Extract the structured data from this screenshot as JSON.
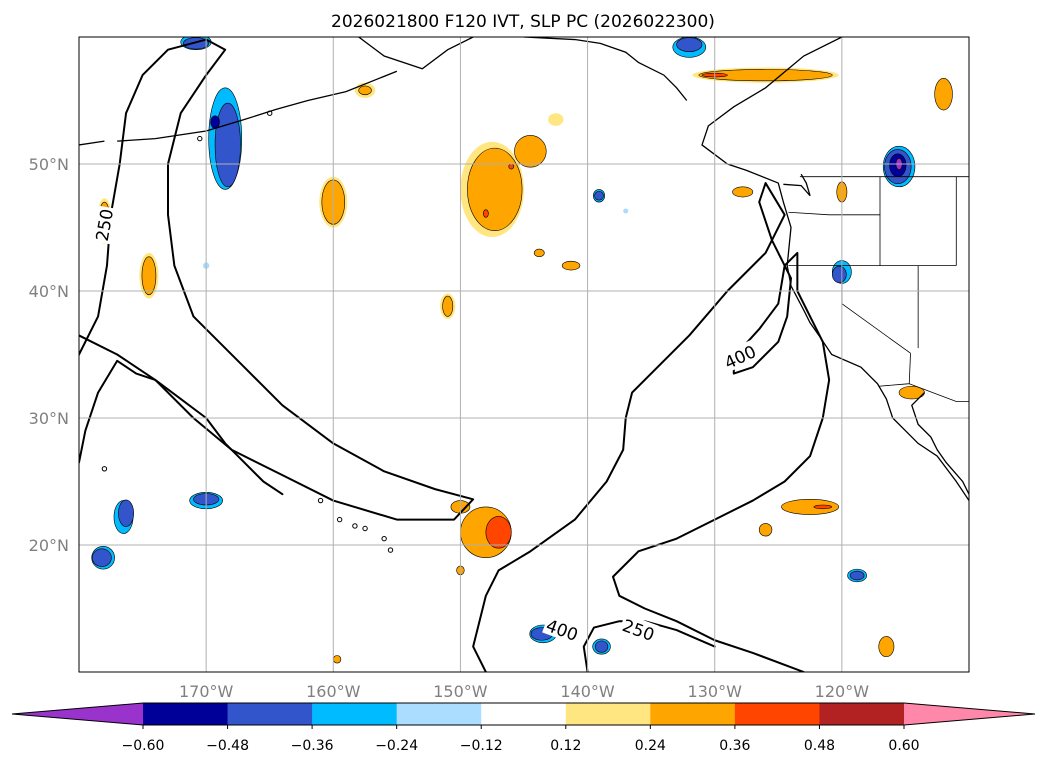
{
  "chart_data": {
    "type": "heatmap",
    "title": "2026021800 F120 IVT, SLP PC (2026022300)",
    "map": {
      "lon_range": [
        -180,
        -110
      ],
      "lat_range": [
        10,
        60
      ],
      "x_ticks": [
        {
          "value": -170,
          "label": "170°W"
        },
        {
          "value": -160,
          "label": "160°W"
        },
        {
          "value": -150,
          "label": "150°W"
        },
        {
          "value": -140,
          "label": "140°W"
        },
        {
          "value": -130,
          "label": "130°W"
        },
        {
          "value": -120,
          "label": "120°W"
        }
      ],
      "y_ticks": [
        {
          "value": 20,
          "label": "20°N"
        },
        {
          "value": 30,
          "label": "30°N"
        },
        {
          "value": 40,
          "label": "40°N"
        },
        {
          "value": 50,
          "label": "50°N"
        }
      ],
      "grid": true
    },
    "colorbar": {
      "orientation": "horizontal",
      "extend": "both",
      "levels": [
        -0.72,
        -0.6,
        -0.48,
        -0.36,
        -0.24,
        -0.12,
        0.12,
        0.24,
        0.36,
        0.48,
        0.6,
        0.72
      ],
      "colors": [
        "#9933cc",
        "#000099",
        "#3355cc",
        "#00bbff",
        "#aaddff",
        "#ffffff",
        "#ffe680",
        "#ffa500",
        "#ff4500",
        "#b22222",
        "#ff88aa"
      ],
      "tick_values": [
        -0.6,
        -0.48,
        -0.36,
        -0.24,
        -0.12,
        0.12,
        0.24,
        0.36,
        0.48,
        0.6
      ],
      "tick_labels": [
        "−0.60",
        "−0.48",
        "−0.36",
        "−0.24",
        "−0.12",
        "0.12",
        "0.24",
        "0.36",
        "0.48",
        "0.60"
      ]
    },
    "contour_labels": [
      {
        "text": "250",
        "lon": -178.0,
        "lat": 45.2
      },
      {
        "text": "400",
        "lon": -128.0,
        "lat": 34.8
      },
      {
        "text": "400",
        "lon": -142.0,
        "lat": 13.3
      },
      {
        "text": "250",
        "lon": -136.0,
        "lat": 13.3
      }
    ],
    "contours": [
      {
        "level": 250,
        "points": [
          [
            -180,
            35
          ],
          [
            -178.5,
            38
          ],
          [
            -177.8,
            42
          ],
          [
            -177.5,
            46
          ],
          [
            -176.8,
            50
          ],
          [
            -176.3,
            54
          ],
          [
            -175,
            57
          ],
          [
            -173,
            59
          ],
          [
            -170,
            59.8
          ],
          [
            -168.5,
            59
          ],
          [
            -170,
            57
          ],
          [
            -172,
            54
          ],
          [
            -173,
            50
          ],
          [
            -173,
            46
          ],
          [
            -172.5,
            42
          ],
          [
            -171,
            38
          ],
          [
            -167,
            34
          ],
          [
            -164,
            31
          ],
          [
            -160,
            28
          ],
          [
            -156,
            25.8
          ],
          [
            -152,
            24.4
          ],
          [
            -149,
            23.6
          ],
          [
            -150.5,
            22
          ],
          [
            -155,
            22
          ],
          [
            -160,
            23.5
          ],
          [
            -164,
            25.5
          ],
          [
            -168,
            27.5
          ],
          [
            -171,
            30
          ],
          [
            -174,
            33
          ],
          [
            -177,
            35
          ],
          [
            -180,
            36.5
          ]
        ]
      },
      {
        "level": 400,
        "points": [
          [
            -180,
            26.5
          ],
          [
            -179.5,
            29
          ],
          [
            -178.5,
            32
          ],
          [
            -177,
            34.5
          ],
          [
            -175.5,
            33.5
          ],
          [
            -174,
            33
          ],
          [
            -172,
            31.5
          ],
          [
            -170,
            30
          ],
          [
            -168.5,
            28
          ],
          [
            -167,
            26.5
          ],
          [
            -165.5,
            25
          ],
          [
            -164,
            24
          ]
        ]
      },
      {
        "level": 400,
        "points": [
          [
            -148,
            10
          ],
          [
            -149,
            12
          ],
          [
            -148.5,
            14
          ],
          [
            -148,
            16
          ],
          [
            -147,
            18
          ],
          [
            -144.5,
            19.5
          ],
          [
            -141,
            22
          ],
          [
            -138.5,
            25
          ],
          [
            -137.2,
            27.5
          ],
          [
            -137,
            30
          ],
          [
            -136.5,
            32
          ],
          [
            -134.5,
            34
          ],
          [
            -132,
            36.5
          ],
          [
            -129,
            40
          ],
          [
            -126,
            43
          ],
          [
            -124.5,
            46
          ],
          [
            -126,
            48.5
          ],
          [
            -126.5,
            47
          ],
          [
            -125.5,
            44
          ],
          [
            -124,
            41
          ],
          [
            -124.3,
            38
          ],
          [
            -125,
            36
          ],
          [
            -127,
            34
          ],
          [
            -128.5,
            33.5
          ],
          [
            -128.5,
            34.8
          ],
          [
            -126.5,
            37
          ],
          [
            -125,
            39
          ],
          [
            -124.5,
            42
          ],
          [
            -123.5,
            43
          ],
          [
            -123.5,
            40
          ],
          [
            -122.5,
            38
          ],
          [
            -121.5,
            36
          ],
          [
            -121,
            33
          ],
          [
            -121.5,
            30
          ],
          [
            -122.5,
            27
          ],
          [
            -124.5,
            25
          ],
          [
            -127,
            23.5
          ],
          [
            -130,
            22
          ],
          [
            -133,
            20.5
          ],
          [
            -136,
            19.5
          ],
          [
            -138,
            17.5
          ],
          [
            -137.5,
            16
          ],
          [
            -135.5,
            15
          ],
          [
            -133,
            14
          ],
          [
            -130,
            12.5
          ],
          [
            -127,
            11.5
          ],
          [
            -123,
            10
          ]
        ]
      },
      {
        "level": 250,
        "points": [
          [
            -140,
            10
          ],
          [
            -140.3,
            12
          ],
          [
            -139.5,
            13.5
          ],
          [
            -137.5,
            14
          ],
          [
            -135.5,
            14
          ],
          [
            -133,
            13.3
          ],
          [
            -130,
            12
          ]
        ]
      }
    ],
    "shaded_blobs": [
      {
        "value": -0.24,
        "lon": -170.8,
        "lat": 59.6,
        "w": 2.4,
        "h": 1.2
      },
      {
        "value": -0.36,
        "lon": -170.8,
        "lat": 59.5,
        "w": 2.0,
        "h": 0.9
      },
      {
        "value": -0.24,
        "lon": -168.5,
        "lat": 52.0,
        "w": 2.6,
        "h": 8.0
      },
      {
        "value": -0.36,
        "lon": -168.3,
        "lat": 51.5,
        "w": 2.0,
        "h": 6.6
      },
      {
        "value": -0.48,
        "lon": -169.3,
        "lat": 53.3,
        "w": 0.7,
        "h": 1.0
      },
      {
        "value": -0.24,
        "lon": -176.5,
        "lat": 22.2,
        "w": 1.5,
        "h": 2.6
      },
      {
        "value": -0.36,
        "lon": -176.3,
        "lat": 22.5,
        "w": 1.2,
        "h": 2.1
      },
      {
        "value": -0.24,
        "lon": -178.1,
        "lat": 19.0,
        "w": 1.8,
        "h": 1.8
      },
      {
        "value": -0.36,
        "lon": -178.2,
        "lat": 19.0,
        "w": 1.5,
        "h": 1.4
      },
      {
        "value": -0.24,
        "lon": -170.0,
        "lat": 23.5,
        "w": 2.6,
        "h": 1.3
      },
      {
        "value": -0.36,
        "lon": -170.0,
        "lat": 23.6,
        "w": 2.0,
        "h": 0.9
      },
      {
        "value": -0.24,
        "lon": -143.5,
        "lat": 13.0,
        "w": 2.1,
        "h": 1.4
      },
      {
        "value": -0.36,
        "lon": -143.6,
        "lat": 13.0,
        "w": 1.7,
        "h": 1.0
      },
      {
        "value": -0.24,
        "lon": -138.9,
        "lat": 12.0,
        "w": 1.4,
        "h": 1.2
      },
      {
        "value": -0.36,
        "lon": -138.9,
        "lat": 12.0,
        "w": 1.0,
        "h": 0.9
      },
      {
        "value": -0.24,
        "lon": -118.8,
        "lat": 17.6,
        "w": 1.5,
        "h": 1.0
      },
      {
        "value": -0.36,
        "lon": -118.8,
        "lat": 17.6,
        "w": 1.1,
        "h": 0.7
      },
      {
        "value": -0.24,
        "lon": -139.1,
        "lat": 47.5,
        "w": 0.9,
        "h": 1.0
      },
      {
        "value": -0.36,
        "lon": -139.1,
        "lat": 47.5,
        "w": 0.7,
        "h": 0.7
      },
      {
        "value": -0.24,
        "lon": -120.0,
        "lat": 41.5,
        "w": 1.5,
        "h": 1.8
      },
      {
        "value": -0.36,
        "lon": -120.2,
        "lat": 41.3,
        "w": 1.1,
        "h": 1.3
      },
      {
        "value": -0.12,
        "lon": -170.0,
        "lat": 42.0,
        "w": 0.5,
        "h": 0.5
      },
      {
        "value": -0.12,
        "lon": -137.0,
        "lat": 46.3,
        "w": 0.4,
        "h": 0.4
      },
      {
        "value": -0.24,
        "lon": -115.5,
        "lat": 49.8,
        "w": 2.5,
        "h": 3.2
      },
      {
        "value": -0.36,
        "lon": -115.6,
        "lat": 49.8,
        "w": 2.1,
        "h": 2.7
      },
      {
        "value": -0.48,
        "lon": -115.6,
        "lat": 49.9,
        "w": 1.3,
        "h": 1.8
      },
      {
        "value": -0.6,
        "lon": -115.5,
        "lat": 50.0,
        "w": 0.5,
        "h": 0.9
      },
      {
        "value": -0.24,
        "lon": -132.0,
        "lat": 59.2,
        "w": 2.6,
        "h": 1.6
      },
      {
        "value": -0.36,
        "lon": -132.0,
        "lat": 59.4,
        "w": 2.0,
        "h": 1.1
      },
      {
        "value": 0.12,
        "lon": -147.5,
        "lat": 48.0,
        "w": 5.0,
        "h": 7.5
      },
      {
        "value": 0.24,
        "lon": -147.3,
        "lat": 48.0,
        "w": 4.3,
        "h": 6.5
      },
      {
        "value": 0.24,
        "lon": -144.5,
        "lat": 51.0,
        "w": 2.5,
        "h": 2.5
      },
      {
        "value": 0.36,
        "lon": -148.0,
        "lat": 46.1,
        "w": 0.4,
        "h": 0.6
      },
      {
        "value": 0.36,
        "lon": -146.0,
        "lat": 49.8,
        "w": 0.4,
        "h": 0.4
      },
      {
        "value": 0.12,
        "lon": -160.0,
        "lat": 47.0,
        "w": 2.2,
        "h": 4.0
      },
      {
        "value": 0.24,
        "lon": -160.0,
        "lat": 47.0,
        "w": 1.8,
        "h": 3.5
      },
      {
        "value": 0.12,
        "lon": -178.0,
        "lat": 45.5,
        "w": 1.2,
        "h": 3.6
      },
      {
        "value": 0.24,
        "lon": -178.0,
        "lat": 45.5,
        "w": 0.9,
        "h": 3.0
      },
      {
        "value": 0.12,
        "lon": -174.5,
        "lat": 41.2,
        "w": 1.5,
        "h": 3.6
      },
      {
        "value": 0.24,
        "lon": -174.5,
        "lat": 41.2,
        "w": 1.1,
        "h": 3.0
      },
      {
        "value": 0.12,
        "lon": -151.0,
        "lat": 38.8,
        "w": 1.2,
        "h": 2.0
      },
      {
        "value": 0.24,
        "lon": -151.0,
        "lat": 38.8,
        "w": 0.8,
        "h": 1.6
      },
      {
        "value": 0.12,
        "lon": -157.5,
        "lat": 55.8,
        "w": 1.6,
        "h": 1.2
      },
      {
        "value": 0.24,
        "lon": -157.5,
        "lat": 55.8,
        "w": 1.0,
        "h": 0.7
      },
      {
        "value": 0.12,
        "lon": -142.5,
        "lat": 53.5,
        "w": 1.2,
        "h": 1.0
      },
      {
        "value": 0.24,
        "lon": -143.8,
        "lat": 43.0,
        "w": 0.8,
        "h": 0.6
      },
      {
        "value": 0.24,
        "lon": -141.3,
        "lat": 42.0,
        "w": 1.4,
        "h": 0.7
      },
      {
        "value": 0.12,
        "lon": -126.0,
        "lat": 57.0,
        "w": 11.5,
        "h": 1.2
      },
      {
        "value": 0.24,
        "lon": -126.0,
        "lat": 57.0,
        "w": 10.5,
        "h": 0.9
      },
      {
        "value": 0.36,
        "lon": -130.0,
        "lat": 57.0,
        "w": 2.0,
        "h": 0.3
      },
      {
        "value": 0.24,
        "lon": -112.0,
        "lat": 55.5,
        "w": 1.4,
        "h": 2.5
      },
      {
        "value": 0.24,
        "lon": -127.8,
        "lat": 47.8,
        "w": 1.6,
        "h": 0.8
      },
      {
        "value": 0.24,
        "lon": -120.0,
        "lat": 47.8,
        "w": 0.8,
        "h": 1.6
      },
      {
        "value": 0.24,
        "lon": -148.0,
        "lat": 21.0,
        "w": 4.0,
        "h": 4.0
      },
      {
        "value": 0.36,
        "lon": -147.0,
        "lat": 21.0,
        "w": 2.0,
        "h": 2.5
      },
      {
        "value": 0.24,
        "lon": -150.0,
        "lat": 23.0,
        "w": 1.5,
        "h": 1.0
      },
      {
        "value": 0.24,
        "lon": -150.0,
        "lat": 18.0,
        "w": 0.6,
        "h": 0.7
      },
      {
        "value": 0.24,
        "lon": -122.5,
        "lat": 23.0,
        "w": 4.5,
        "h": 1.2
      },
      {
        "value": 0.36,
        "lon": -121.5,
        "lat": 23.0,
        "w": 1.4,
        "h": 0.3
      },
      {
        "value": 0.24,
        "lon": -126.0,
        "lat": 21.2,
        "w": 1.0,
        "h": 1.0
      },
      {
        "value": 0.24,
        "lon": -116.5,
        "lat": 12.0,
        "w": 1.2,
        "h": 1.6
      },
      {
        "value": 0.24,
        "lon": -159.7,
        "lat": 11.0,
        "w": 0.6,
        "h": 0.6
      },
      {
        "value": 0.24,
        "lon": -114.5,
        "lat": 32.0,
        "w": 2.0,
        "h": 1.0
      }
    ]
  }
}
